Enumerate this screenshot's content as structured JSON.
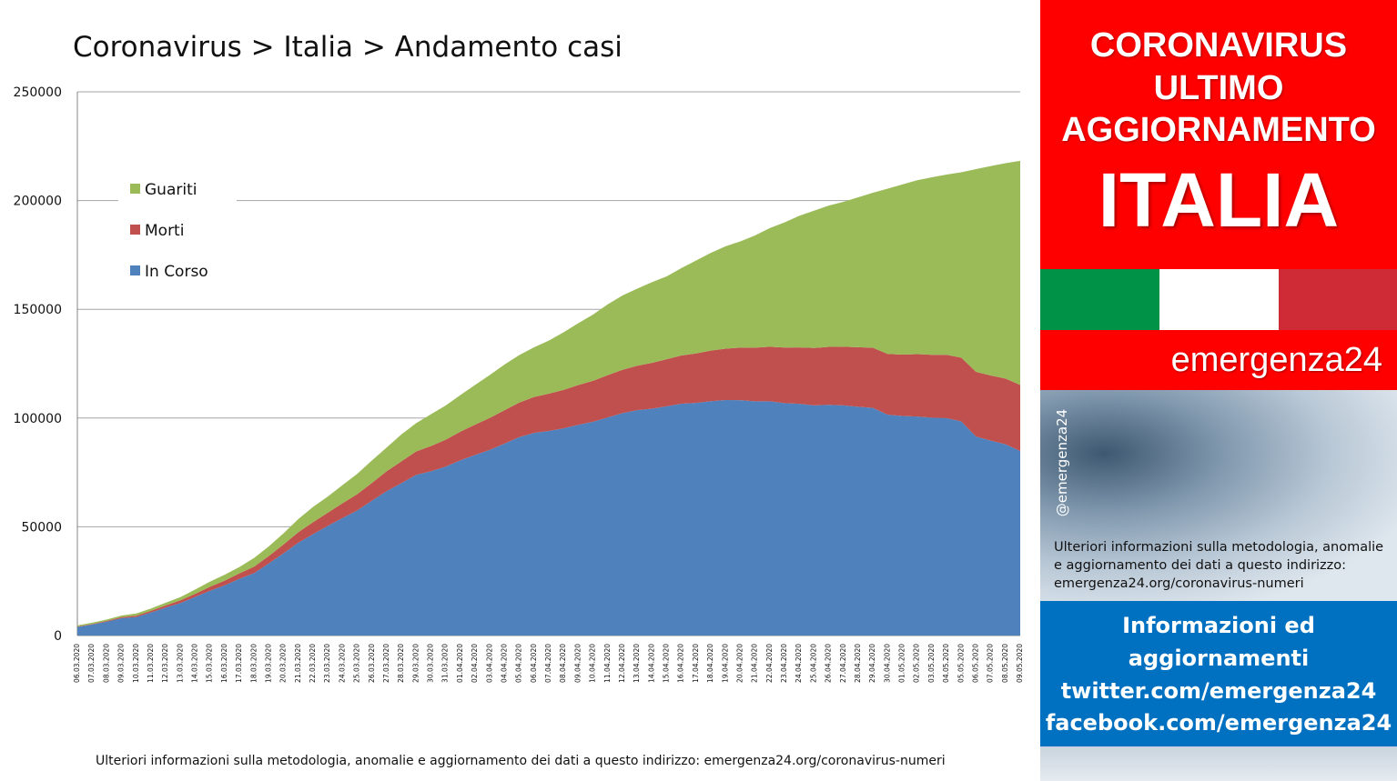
{
  "chart_title": "Coronavirus > Italia > Andamento casi",
  "footnote": "Ulteriori informazioni sulla metodologia, anomalie e aggiornamento dei dati a questo indirizzo: emergenza24.org/coronavirus-numeri",
  "colors": {
    "guariti": "#9bbb59",
    "morti": "#c0504d",
    "in_corso": "#4f81bd",
    "sidebar_red": "#fe0000",
    "sidebar_blue": "#0070c0",
    "flag_green": "#009246",
    "flag_white": "#ffffff",
    "flag_red": "#ce2b37"
  },
  "chart_data": {
    "type": "area",
    "stacked": true,
    "title": "Coronavirus > Italia > Andamento casi",
    "xlabel": "",
    "ylabel": "",
    "ylim": [
      0,
      250000
    ],
    "yticks": [
      0,
      50000,
      100000,
      150000,
      200000,
      250000
    ],
    "grid": true,
    "legend_position": "top-left",
    "x": [
      "06.03.2020",
      "07.03.2020",
      "08.03.2020",
      "09.03.2020",
      "10.03.2020",
      "11.03.2020",
      "12.03.2020",
      "13.03.2020",
      "14.03.2020",
      "15.03.2020",
      "16.03.2020",
      "17.03.2020",
      "18.03.2020",
      "19.03.2020",
      "20.03.2020",
      "21.03.2020",
      "22.03.2020",
      "23.03.2020",
      "24.03.2020",
      "25.03.2020",
      "26.03.2020",
      "27.03.2020",
      "28.03.2020",
      "29.03.2020",
      "30.03.2020",
      "31.03.2020",
      "01.04.2020",
      "02.04.2020",
      "03.04.2020",
      "04.04.2020",
      "05.04.2020",
      "06.04.2020",
      "07.04.2020",
      "08.04.2020",
      "09.04.2020",
      "10.04.2020",
      "11.04.2020",
      "12.04.2020",
      "13.04.2020",
      "14.04.2020",
      "15.04.2020",
      "16.04.2020",
      "17.04.2020",
      "18.04.2020",
      "19.04.2020",
      "20.04.2020",
      "21.04.2020",
      "22.04.2020",
      "23.04.2020",
      "24.04.2020",
      "25.04.2020",
      "26.04.2020",
      "27.04.2020",
      "28.04.2020",
      "29.04.2020",
      "30.04.2020",
      "01.05.2020",
      "02.05.2020",
      "03.05.2020",
      "04.05.2020",
      "05.05.2020",
      "06.05.2020",
      "07.05.2020",
      "08.05.2020",
      "09.05.2020"
    ],
    "series": [
      {
        "name": "In Corso",
        "values": [
          3916,
          5061,
          6387,
          7985,
          8514,
          10590,
          12839,
          14955,
          17750,
          20603,
          23073,
          26062,
          28710,
          33190,
          37860,
          42681,
          46638,
          50418,
          54030,
          57521,
          62013,
          66414,
          70065,
          73880,
          75528,
          77635,
          80572,
          83049,
          85388,
          88274,
          91246,
          93187,
          94067,
          95262,
          96877,
          98273,
          100269,
          102253,
          103616,
          104291,
          105418,
          106607,
          106962,
          107771,
          108257,
          108237,
          107709,
          107699,
          106848,
          106527,
          105847,
          106103,
          105813,
          105205,
          104657,
          101551,
          100943,
          100704,
          100179,
          99980,
          98467,
          91528,
          89624,
          87961,
          84842
        ]
      },
      {
        "name": "Morti",
        "values": [
          197,
          233,
          366,
          463,
          631,
          827,
          1016,
          1266,
          1441,
          1809,
          2158,
          2503,
          2978,
          3405,
          4032,
          4825,
          5476,
          6077,
          6820,
          7503,
          8165,
          9134,
          10023,
          10779,
          11591,
          12428,
          13155,
          13915,
          14681,
          15362,
          15887,
          16523,
          17127,
          17669,
          18279,
          18849,
          19468,
          19899,
          20465,
          21067,
          21645,
          22170,
          22745,
          23227,
          23660,
          24114,
          24648,
          25085,
          25549,
          25969,
          26384,
          26644,
          26977,
          27359,
          27682,
          27967,
          28236,
          28710,
          28884,
          29079,
          29315,
          29684,
          29958,
          30201,
          30395
        ]
      },
      {
        "name": "Guariti",
        "values": [
          523,
          589,
          622,
          724,
          1004,
          1045,
          1258,
          1439,
          1966,
          2335,
          2749,
          2941,
          4025,
          4440,
          5129,
          6072,
          7024,
          7432,
          8326,
          9362,
          10361,
          10950,
          12384,
          13030,
          14620,
          15729,
          16847,
          18278,
          19758,
          20996,
          21815,
          22837,
          24392,
          26491,
          28470,
          30455,
          32534,
          34211,
          35435,
          37130,
          38092,
          40164,
          42727,
          44927,
          47055,
          48877,
          51600,
          54543,
          57576,
          60498,
          63120,
          64928,
          66624,
          68941,
          71252,
          75945,
          78249,
          79914,
          81654,
          82879,
          85231,
          93245,
          96276,
          99023,
          103031
        ]
      }
    ]
  },
  "sidebar": {
    "line1": "CORONAVIRUS",
    "line2": "ULTIMO",
    "line3": "AGGIORNAMENTO",
    "country": "ITALIA",
    "brand": "emergenza24",
    "handle": "@emergenza24",
    "info": "Ulteriori informazioni sulla metodologia, anomalie e aggiornamento dei dati a questo indirizzo: emergenza24.org/coronavirus-numeri",
    "blue_line1": "Informazioni ed",
    "blue_line2": "aggiornamenti",
    "blue_line3": "twitter.com/emergenza24",
    "blue_line4": "facebook.com/emergenza24"
  }
}
